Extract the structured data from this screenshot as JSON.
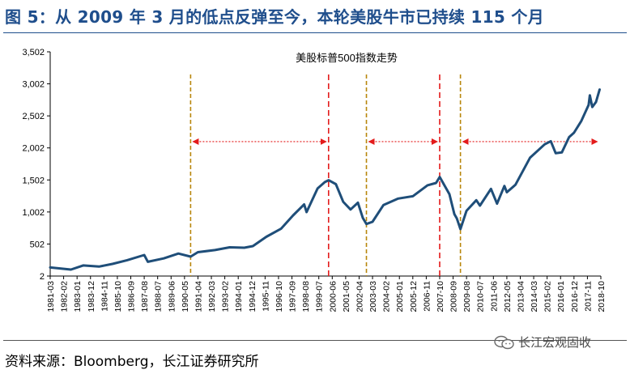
{
  "header": {
    "title": "图 5：从 2009 年 3 月的低点反弹至今，本轮美股牛市已持续 115 个月"
  },
  "footer": {
    "source": "资料来源：Bloomberg，长江证券研究所",
    "watermark": "长江宏观固收",
    "watermark_icon": "wechat-icon"
  },
  "colors": {
    "title": "#1f4e8c",
    "series": "#1f4e79",
    "red_marker": "#e31b1b",
    "gold_marker": "#b8860b",
    "arrow": "#e31b1b"
  },
  "chart_data": {
    "type": "line",
    "title": "美股标普500指数走势",
    "xlabel": "",
    "ylabel": "",
    "ylim": [
      2,
      3502
    ],
    "yticks": [
      "3,502",
      "3,002",
      "2,502",
      "2,002",
      "1,502",
      "1,002",
      "502",
      "2"
    ],
    "ytick_values": [
      3502,
      3002,
      2502,
      2002,
      1502,
      1002,
      502,
      2
    ],
    "xticks": [
      "1981-03",
      "1982-02",
      "1983-01",
      "1983-12",
      "1984-11",
      "1985-10",
      "1986-09",
      "1987-08",
      "1988-07",
      "1989-06",
      "1990-05",
      "1991-04",
      "1992-03",
      "1993-02",
      "1994-01",
      "1994-12",
      "1995-11",
      "1996-10",
      "1997-09",
      "1998-08",
      "1999-07",
      "2000-06",
      "2001-05",
      "2002-04",
      "2003-03",
      "2004-02",
      "2005-01",
      "2005-12",
      "2006-11",
      "2007-10",
      "2008-09",
      "2009-08",
      "2010-07",
      "2011-06",
      "2012-05",
      "2013-04",
      "2014-03",
      "2015-02",
      "2016-01",
      "2016-12",
      "2017-11",
      "2018-10"
    ],
    "xrange": [
      "1981-03",
      "2018-10"
    ],
    "grid": false,
    "series": [
      {
        "values": [
          [
            "1981-03",
            136
          ],
          [
            "1982-08",
            103
          ],
          [
            "1983-06",
            168
          ],
          [
            "1984-07",
            150
          ],
          [
            "1985-06",
            191
          ],
          [
            "1986-06",
            250
          ],
          [
            "1987-08",
            330
          ],
          [
            "1987-11",
            225
          ],
          [
            "1988-12",
            277
          ],
          [
            "1989-12",
            353
          ],
          [
            "1990-10",
            305
          ],
          [
            "1991-04",
            375
          ],
          [
            "1992-06",
            408
          ],
          [
            "1993-06",
            450
          ],
          [
            "1994-06",
            444
          ],
          [
            "1995-01",
            470
          ],
          [
            "1995-12",
            615
          ],
          [
            "1996-12",
            740
          ],
          [
            "1997-10",
            950
          ],
          [
            "1998-07",
            1120
          ],
          [
            "1998-09",
            1000
          ],
          [
            "1999-06",
            1370
          ],
          [
            "1999-12",
            1469
          ],
          [
            "2000-03",
            1498
          ],
          [
            "2000-09",
            1436
          ],
          [
            "2001-03",
            1160
          ],
          [
            "2001-09",
            1040
          ],
          [
            "2002-03",
            1147
          ],
          [
            "2002-07",
            911
          ],
          [
            "2002-10",
            815
          ],
          [
            "2003-03",
            848
          ],
          [
            "2003-12",
            1111
          ],
          [
            "2004-12",
            1211
          ],
          [
            "2005-12",
            1248
          ],
          [
            "2006-12",
            1418
          ],
          [
            "2007-07",
            1455
          ],
          [
            "2007-10",
            1549
          ],
          [
            "2008-06",
            1280
          ],
          [
            "2008-10",
            968
          ],
          [
            "2008-12",
            903
          ],
          [
            "2009-03",
            735
          ],
          [
            "2009-08",
            1020
          ],
          [
            "2010-04",
            1186
          ],
          [
            "2010-07",
            1101
          ],
          [
            "2011-04",
            1363
          ],
          [
            "2011-09",
            1131
          ],
          [
            "2012-03",
            1408
          ],
          [
            "2012-05",
            1310
          ],
          [
            "2012-12",
            1426
          ],
          [
            "2013-12",
            1848
          ],
          [
            "2014-12",
            2058
          ],
          [
            "2015-05",
            2107
          ],
          [
            "2015-09",
            1920
          ],
          [
            "2016-02",
            1932
          ],
          [
            "2016-08",
            2170
          ],
          [
            "2016-12",
            2238
          ],
          [
            "2017-06",
            2423
          ],
          [
            "2017-12",
            2673
          ],
          [
            "2018-01",
            2823
          ],
          [
            "2018-03",
            2640
          ],
          [
            "2018-06",
            2718
          ],
          [
            "2018-09",
            2913
          ]
        ]
      }
    ],
    "annotations": [
      {
        "type": "vline",
        "x": "1990-10",
        "style": "gold"
      },
      {
        "type": "vline",
        "x": "2000-03",
        "style": "red"
      },
      {
        "type": "vline",
        "x": "2002-10",
        "style": "gold"
      },
      {
        "type": "vline",
        "x": "2007-10",
        "style": "red"
      },
      {
        "type": "vline",
        "x": "2009-03",
        "style": "gold"
      },
      {
        "type": "arrow",
        "from": "1990-10",
        "to": "2000-03",
        "y": 2100
      },
      {
        "type": "arrow",
        "from": "2002-10",
        "to": "2007-10",
        "y": 2100
      },
      {
        "type": "arrow",
        "from": "2009-03",
        "to": "2018-09",
        "y": 2100
      }
    ]
  }
}
